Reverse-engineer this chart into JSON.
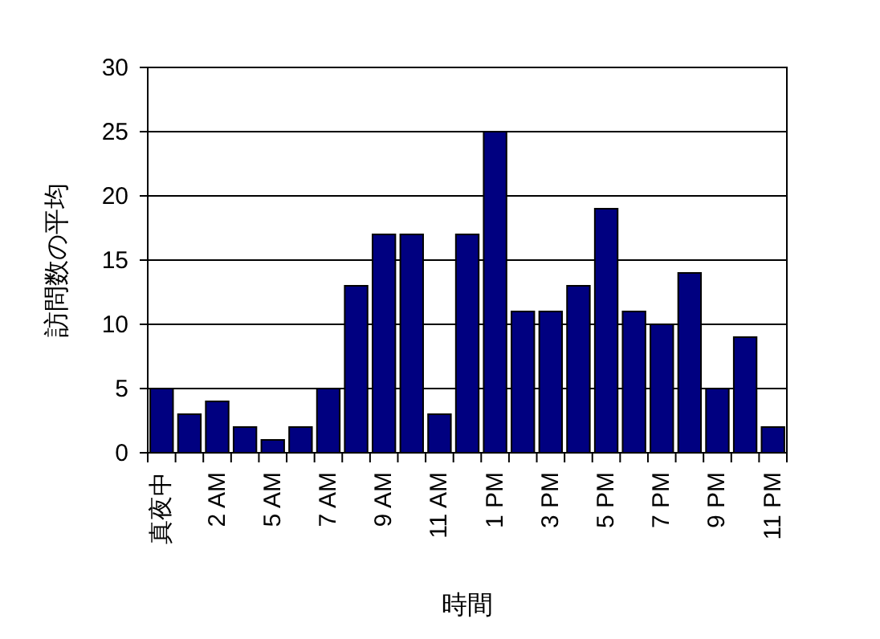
{
  "chart_data": {
    "type": "bar",
    "xlabel": "時間",
    "ylabel": "訪問数の平均",
    "categories": [
      "真夜中",
      null,
      "2 AM",
      null,
      "5 AM",
      null,
      "7 AM",
      null,
      "9 AM",
      null,
      "11 AM",
      null,
      "1 PM",
      null,
      "3 PM",
      null,
      "5 PM",
      null,
      "7 PM",
      null,
      "9 PM",
      null,
      "11 PM"
    ],
    "values": [
      5,
      3,
      4,
      2,
      1,
      2,
      5,
      13,
      17,
      17,
      3,
      17,
      25,
      11,
      11,
      13,
      19,
      11,
      10,
      14,
      5,
      9,
      2
    ],
    "color": "#000080",
    "ylim": [
      0,
      30
    ],
    "yticks": [
      0,
      5,
      10,
      15,
      20,
      25,
      30
    ],
    "grid": "y"
  }
}
